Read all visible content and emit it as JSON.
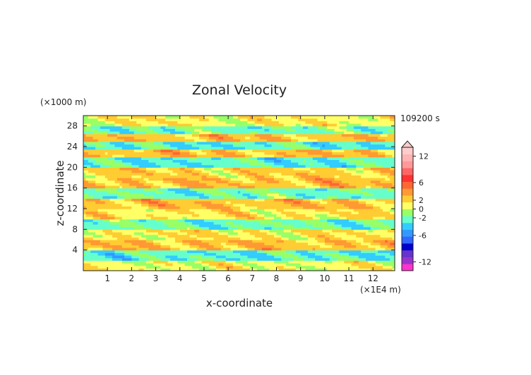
{
  "chart_data": {
    "type": "heatmap",
    "title": "Zonal Velocity",
    "xlabel": "x-coordinate",
    "ylabel": "z-coordinate",
    "x_unit": "(×1E4 m)",
    "y_unit": "(×1000 m)",
    "time_label": "109200 s",
    "xlim": [
      0,
      12.9
    ],
    "ylim": [
      0,
      30
    ],
    "x_ticks": [
      "1",
      "2",
      "3",
      "4",
      "5",
      "6",
      "7",
      "8",
      "9",
      "10",
      "11",
      "12"
    ],
    "y_ticks": [
      "4",
      "8",
      "12",
      "16",
      "20",
      "24",
      "28"
    ],
    "colorbar": {
      "tick_labels": [
        "12",
        "6",
        "2",
        "0",
        "-2",
        "-6",
        "-12"
      ],
      "levels": [
        -14,
        -12,
        -10,
        -8,
        -6,
        -4,
        -3,
        -2,
        -1,
        0,
        1,
        2,
        3,
        4,
        6,
        8,
        10,
        12,
        14
      ],
      "colors": [
        "#ff33cc",
        "#9933cc",
        "#6633cc",
        "#0000cc",
        "#3366ff",
        "#3399ff",
        "#33ccff",
        "#66ffcc",
        "#99ff66",
        "#ffff66",
        "#ffcc33",
        "#ff9933",
        "#ff6633",
        "#ff3333",
        "#ff6666",
        "#ff9999",
        "#ffb3b3",
        "#ffcccc"
      ],
      "extend": "max"
    },
    "dominant_bands": [
      {
        "z": 1,
        "value": 0.6
      },
      {
        "z": 3,
        "value": -2
      },
      {
        "z": 5,
        "value": 2
      },
      {
        "z": 7,
        "value": 1
      },
      {
        "z": 9,
        "value": -1.5
      },
      {
        "z": 11,
        "value": 1
      },
      {
        "z": 13,
        "value": 2
      },
      {
        "z": 15,
        "value": -1.5
      },
      {
        "z": 17,
        "value": 2
      },
      {
        "z": 19,
        "value": 1.5
      },
      {
        "z": 21,
        "value": -2
      },
      {
        "z": 23,
        "value": 2
      },
      {
        "z": 24,
        "value": -2
      },
      {
        "z": 26,
        "value": 2
      },
      {
        "z": 27,
        "value": -1.5
      },
      {
        "z": 29,
        "value": 0.8
      }
    ],
    "grid": false,
    "colorbar_position": "right"
  }
}
